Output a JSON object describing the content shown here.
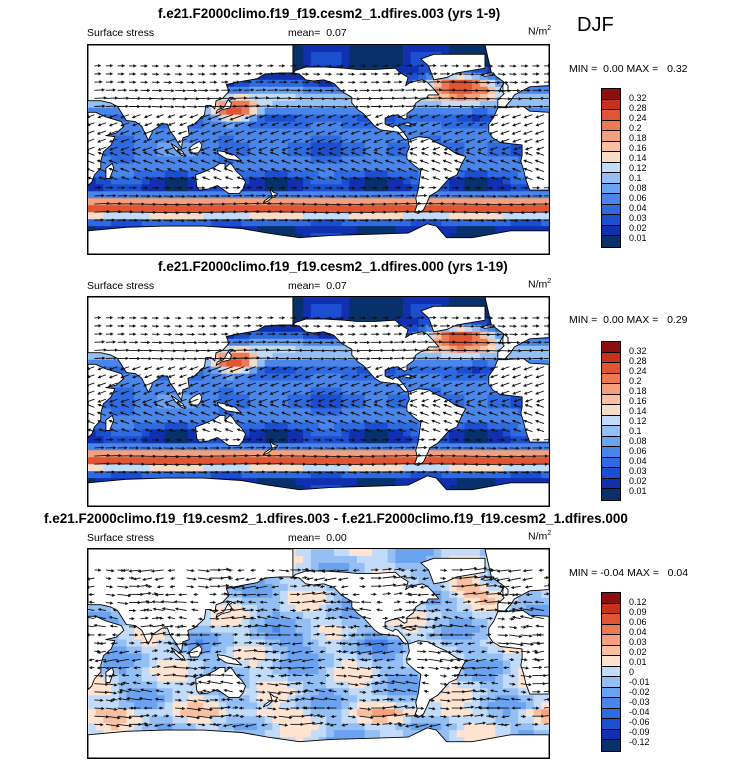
{
  "season": "DJF",
  "colors": {
    "land": "#ffffff",
    "coast": "#000000",
    "arrow": "#111111",
    "abs_scale": [
      "#08306b",
      "#1030b0",
      "#1c4fd0",
      "#2f6be0",
      "#4a86ea",
      "#6ca3f0",
      "#94bff5",
      "#c2dbf8",
      "#f7dcc8",
      "#f8c0a0",
      "#f5a07c",
      "#ee7a55",
      "#e25534",
      "#c8301e",
      "#8e0d0d"
    ],
    "diff_scale": [
      "#08306b",
      "#1030b0",
      "#1c4fd0",
      "#2f6be0",
      "#4a86ea",
      "#6ca3f0",
      "#94bff5",
      "#c2dbf8",
      "#fde3d0",
      "#f8c0a0",
      "#f5a07c",
      "#ee7a55",
      "#e25534",
      "#c8301e",
      "#8e0d0d"
    ]
  },
  "panels": [
    {
      "title": "f.e21.F2000climo.f19_f19.cesm2_1.dfires.003 (yrs 1-9)",
      "variable": "Surface stress",
      "mean_label": "mean=",
      "mean_value": "0.07",
      "units": "N/m",
      "units_exp": "2",
      "min_label": "MIN =",
      "min_value": "0.00",
      "max_label": "MAX =",
      "max_value": "0.32",
      "mode": "abs",
      "levels": [
        "0.32",
        "0.28",
        "0.24",
        "0.2",
        "0.18",
        "0.16",
        "0.14",
        "0.12",
        "0.1",
        "0.08",
        "0.06",
        "0.04",
        "0.03",
        "0.02",
        "0.01"
      ]
    },
    {
      "title": "f.e21.F2000climo.f19_f19.cesm2_1.dfires.000 (yrs 1-19)",
      "variable": "Surface stress",
      "mean_label": "mean=",
      "mean_value": "0.07",
      "units": "N/m",
      "units_exp": "2",
      "min_label": "MIN =",
      "min_value": "0.00",
      "max_label": "MAX =",
      "max_value": "0.29",
      "mode": "abs",
      "levels": [
        "0.32",
        "0.28",
        "0.24",
        "0.2",
        "0.18",
        "0.16",
        "0.14",
        "0.12",
        "0.1",
        "0.08",
        "0.06",
        "0.04",
        "0.03",
        "0.02",
        "0.01"
      ]
    },
    {
      "title": "f.e21.F2000climo.f19_f19.cesm2_1.dfires.003 - f.e21.F2000climo.f19_f19.cesm2_1.dfires.000",
      "variable": "Surface stress",
      "mean_label": "mean=",
      "mean_value": "0.00",
      "units": "N/m",
      "units_exp": "2",
      "min_label": "MIN =",
      "min_value": "-0.04",
      "max_label": "MAX =",
      "max_value": "0.04",
      "mode": "diff",
      "levels": [
        "0.12",
        "0.09",
        "0.06",
        "0.04",
        "0.03",
        "0.02",
        "0.01",
        "0",
        "-0.01",
        "-0.02",
        "-0.03",
        "-0.04",
        "-0.06",
        "-0.09",
        "-0.12"
      ]
    }
  ]
}
